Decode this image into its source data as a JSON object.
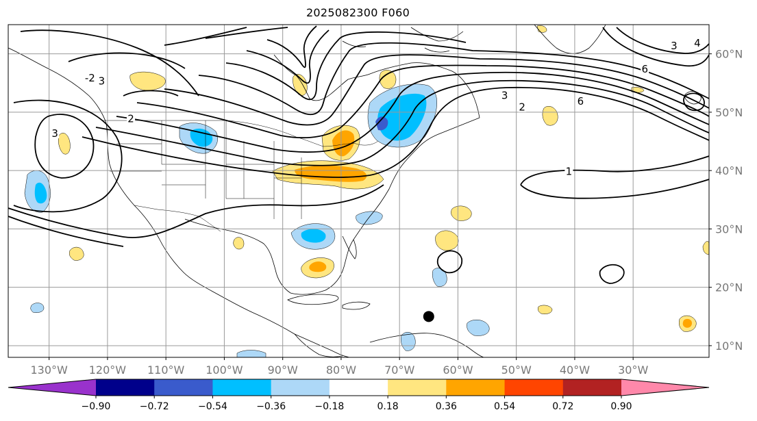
{
  "title": "2025082300 F060",
  "lon_ticks": [
    {
      "lon": -130,
      "label": "130°W"
    },
    {
      "lon": -120,
      "label": "120°W"
    },
    {
      "lon": -110,
      "label": "110°W"
    },
    {
      "lon": -100,
      "label": "100°W"
    },
    {
      "lon": -90,
      "label": "90°W"
    },
    {
      "lon": -80,
      "label": "80°W"
    },
    {
      "lon": -70,
      "label": "70°W"
    },
    {
      "lon": -60,
      "label": "60°W"
    },
    {
      "lon": -50,
      "label": "50°W"
    },
    {
      "lon": -40,
      "label": "40°W"
    },
    {
      "lon": -30,
      "label": "30°W"
    }
  ],
  "lat_ticks": [
    {
      "lat": 60,
      "label": "60°N"
    },
    {
      "lat": 50,
      "label": "50°N"
    },
    {
      "lat": 40,
      "label": "40°N"
    },
    {
      "lat": 30,
      "label": "30°N"
    },
    {
      "lat": 20,
      "label": "20°N"
    },
    {
      "lat": 10,
      "label": "10°N"
    }
  ],
  "map_extent": {
    "lon_min": -137,
    "lon_max": -17,
    "lat_min": 8,
    "lat_max": 65
  },
  "colorbar": {
    "labels": [
      "−0.90",
      "−0.72",
      "−0.54",
      "−0.36",
      "−0.18",
      "0.18",
      "0.36",
      "0.54",
      "0.72",
      "0.90"
    ],
    "levels": [
      -0.9,
      -0.72,
      -0.54,
      -0.36,
      -0.18,
      0.18,
      0.36,
      0.54,
      0.72,
      0.9
    ],
    "colors": [
      "#9932cc",
      "#00008b",
      "#3a5bcc",
      "#00bfff",
      "#add8f7",
      "#ffffff",
      "#ffe680",
      "#ffa500",
      "#ff4500",
      "#b22222",
      "#ff88aa"
    ]
  },
  "contour_labels": [
    {
      "text": "1",
      "lon": -41,
      "lat": 39.5
    },
    {
      "text": "2",
      "lon": -49,
      "lat": 50.5
    },
    {
      "text": "3",
      "lon": -52,
      "lat": 52.5
    },
    {
      "text": "6",
      "lon": -39,
      "lat": 51.5
    },
    {
      "text": "6",
      "lon": -28,
      "lat": 57
    },
    {
      "text": "3",
      "lon": -23,
      "lat": 61
    },
    {
      "text": "4",
      "lon": -19,
      "lat": 61.5
    },
    {
      "text": "2",
      "lon": -116,
      "lat": 48.5
    },
    {
      "text": "3",
      "lon": -121,
      "lat": 55
    },
    {
      "text": "-2",
      "lon": -123,
      "lat": 55.5
    },
    {
      "text": "3",
      "lon": -129,
      "lat": 46
    }
  ],
  "marker": {
    "lon": -65,
    "lat": 15
  }
}
